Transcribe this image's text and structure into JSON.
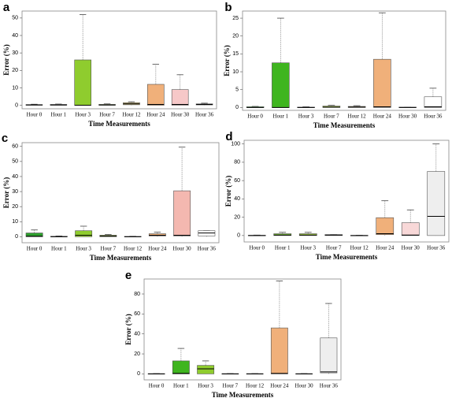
{
  "chart_data": [
    {
      "type": "box",
      "label": "a",
      "ylabel": "Error (%)",
      "xlabel": "Time Measurements",
      "categories": [
        "Hour 0",
        "Hour 1",
        "Hour 3",
        "Hour 7",
        "Hour 12",
        "Hour 24",
        "Hour 30",
        "Hour 36"
      ],
      "boxes": [
        {
          "min": 0,
          "q1": 0,
          "median": 0.2,
          "q3": 0.4,
          "max": 0.6
        },
        {
          "min": 0,
          "q1": 0,
          "median": 0.2,
          "q3": 0.5,
          "max": 0.7
        },
        {
          "min": 0,
          "q1": 0,
          "median": 0,
          "q3": 26,
          "max": 52
        },
        {
          "min": 0,
          "q1": 0,
          "median": 0.2,
          "q3": 0.5,
          "max": 0.8
        },
        {
          "min": 0,
          "q1": 0.3,
          "median": 0.8,
          "q3": 1.5,
          "max": 2
        },
        {
          "min": 0,
          "q1": 0,
          "median": 0.5,
          "q3": 12,
          "max": 23.5
        },
        {
          "min": 0,
          "q1": 0,
          "median": 0.5,
          "q3": 9,
          "max": 17.5
        },
        {
          "min": 0,
          "q1": 0.2,
          "median": 0.5,
          "q3": 0.8,
          "max": 1.2
        }
      ],
      "colors": [
        "#ffffff",
        "#ffffff",
        "#8fcc2e",
        "#b5d94a",
        "#d3c37a",
        "#f0b07a",
        "#f6c8c8",
        "#ffffff"
      ],
      "ylim": [
        -2,
        54
      ],
      "yticks": [
        0,
        10,
        20,
        30,
        40,
        50
      ]
    },
    {
      "type": "box",
      "label": "b",
      "ylabel": "Error (%)",
      "xlabel": "Time Measurements",
      "categories": [
        "Hour 0",
        "Hour 1",
        "Hour 3",
        "Hour 7",
        "Hour 12",
        "Hour 24",
        "Hour 30",
        "Hour 36"
      ],
      "boxes": [
        {
          "min": 0,
          "q1": 0,
          "median": 0,
          "q3": 0.2,
          "max": 0.3
        },
        {
          "min": 0,
          "q1": 0,
          "median": 0,
          "q3": 12.5,
          "max": 25
        },
        {
          "min": 0,
          "q1": 0,
          "median": 0,
          "q3": 0.1,
          "max": 0.2
        },
        {
          "min": 0,
          "q1": 0,
          "median": 0.1,
          "q3": 0.4,
          "max": 0.6
        },
        {
          "min": 0,
          "q1": 0,
          "median": 0.1,
          "q3": 0.3,
          "max": 0.5
        },
        {
          "min": 0,
          "q1": 0,
          "median": 0.2,
          "q3": 13.5,
          "max": 26.5
        },
        {
          "min": 0,
          "q1": 0,
          "median": 0,
          "q3": 0.1,
          "max": 0.1
        },
        {
          "min": 0,
          "q1": 0,
          "median": 0.2,
          "q3": 3,
          "max": 5.4
        }
      ],
      "colors": [
        "#2ea02e",
        "#3fb51f",
        "#ffffff",
        "#b5d94a",
        "#d3c37a",
        "#f0b07a",
        "#ffffff",
        "#ffffff"
      ],
      "ylim": [
        -0.8,
        27
      ],
      "yticks": [
        0,
        5,
        10,
        15,
        20,
        25
      ]
    },
    {
      "type": "box",
      "label": "c",
      "ylabel": "Error (%)",
      "xlabel": "Time Measurements",
      "categories": [
        "Hour 0",
        "Hour 1",
        "Hour 3",
        "Hour 7",
        "Hour 12",
        "Hour 24",
        "Hour 30",
        "Hour 36"
      ],
      "boxes": [
        {
          "min": 0,
          "q1": 0,
          "median": 0.3,
          "q3": 2.5,
          "max": 4.5
        },
        {
          "min": 0,
          "q1": 0,
          "median": 0,
          "q3": 0.3,
          "max": 0.5
        },
        {
          "min": 0,
          "q1": 0,
          "median": 1,
          "q3": 4,
          "max": 7
        },
        {
          "min": 0,
          "q1": 0,
          "median": 0.5,
          "q3": 1,
          "max": 1.5
        },
        {
          "min": 0,
          "q1": 0,
          "median": 0,
          "q3": 0.2,
          "max": 0.3
        },
        {
          "min": 0,
          "q1": 0.5,
          "median": 1,
          "q3": 2,
          "max": 3
        },
        {
          "min": 0,
          "q1": 0.5,
          "median": 1,
          "q3": 30.5,
          "max": 59.5
        },
        {
          "min": 0,
          "q1": 0.5,
          "median": 2.5,
          "q3": 4,
          "max": 4
        }
      ],
      "colors": [
        "#2ea02e",
        "#ffffff",
        "#8fcc2e",
        "#b5d94a",
        "#ffffff",
        "#f0b07a",
        "#f4b8b0",
        "#ffffff"
      ],
      "ylim": [
        -4,
        62.5
      ],
      "yticks": [
        0,
        10,
        20,
        30,
        40,
        50,
        60
      ]
    },
    {
      "type": "box",
      "label": "d",
      "ylabel": "Error (%)",
      "xlabel": "Time Measurements",
      "categories": [
        "Hour 0",
        "Hour 1",
        "Hour 3",
        "Hour 7",
        "Hour 12",
        "Hour 24",
        "Hour 30",
        "Hour 36"
      ],
      "boxes": [
        {
          "min": 0,
          "q1": 0,
          "median": 0,
          "q3": 0.3,
          "max": 0.5
        },
        {
          "min": 0,
          "q1": 0,
          "median": 0.5,
          "q3": 2,
          "max": 3.5
        },
        {
          "min": 0,
          "q1": 0,
          "median": 0.5,
          "q3": 2,
          "max": 3.5
        },
        {
          "min": 0,
          "q1": 0,
          "median": 0.5,
          "q3": 1,
          "max": 1
        },
        {
          "min": 0,
          "q1": 0,
          "median": 0,
          "q3": 0.2,
          "max": 0.3
        },
        {
          "min": 0,
          "q1": 1,
          "median": 2,
          "q3": 19.5,
          "max": 38
        },
        {
          "min": 0,
          "q1": 0,
          "median": 0.5,
          "q3": 14,
          "max": 28
        },
        {
          "min": 0,
          "q1": 0,
          "median": 21,
          "q3": 70,
          "max": 100
        }
      ],
      "colors": [
        "#ffffff",
        "#7fc540",
        "#a8d44a",
        "#ffffff",
        "#ffffff",
        "#f0b07a",
        "#f8d8d8",
        "#eeeeee"
      ],
      "ylim": [
        -7,
        104
      ],
      "yticks": [
        0,
        20,
        40,
        60,
        80,
        100
      ]
    },
    {
      "type": "box",
      "label": "e",
      "ylabel": "Error (%)",
      "xlabel": "Time Measurements",
      "categories": [
        "Hour 0",
        "Hour 1",
        "Hour 3",
        "Hour 7",
        "Hour 12",
        "Hour 24",
        "Hour 30",
        "Hour 36"
      ],
      "boxes": [
        {
          "min": 0,
          "q1": 0,
          "median": 0,
          "q3": 0.2,
          "max": 0.3
        },
        {
          "min": 0,
          "q1": 0,
          "median": 0.5,
          "q3": 13,
          "max": 25.5
        },
        {
          "min": 0,
          "q1": 0,
          "median": 5,
          "q3": 8.5,
          "max": 13
        },
        {
          "min": 0,
          "q1": 0,
          "median": 0,
          "q3": 0.2,
          "max": 0.3
        },
        {
          "min": 0,
          "q1": 0,
          "median": 0,
          "q3": 0.2,
          "max": 0.3
        },
        {
          "min": 0,
          "q1": 0,
          "median": 0.5,
          "q3": 46,
          "max": 93
        },
        {
          "min": 0,
          "q1": 0,
          "median": 0,
          "q3": 0.2,
          "max": 0.3
        },
        {
          "min": 0,
          "q1": 1,
          "median": 2,
          "q3": 36,
          "max": 70.5
        }
      ],
      "colors": [
        "#ffffff",
        "#3fb51f",
        "#8fcc2e",
        "#ffffff",
        "#ffffff",
        "#f0b07a",
        "#ffffff",
        "#eeeeee"
      ],
      "ylim": [
        -6,
        95
      ],
      "yticks": [
        0,
        20,
        40,
        60,
        80
      ]
    }
  ]
}
